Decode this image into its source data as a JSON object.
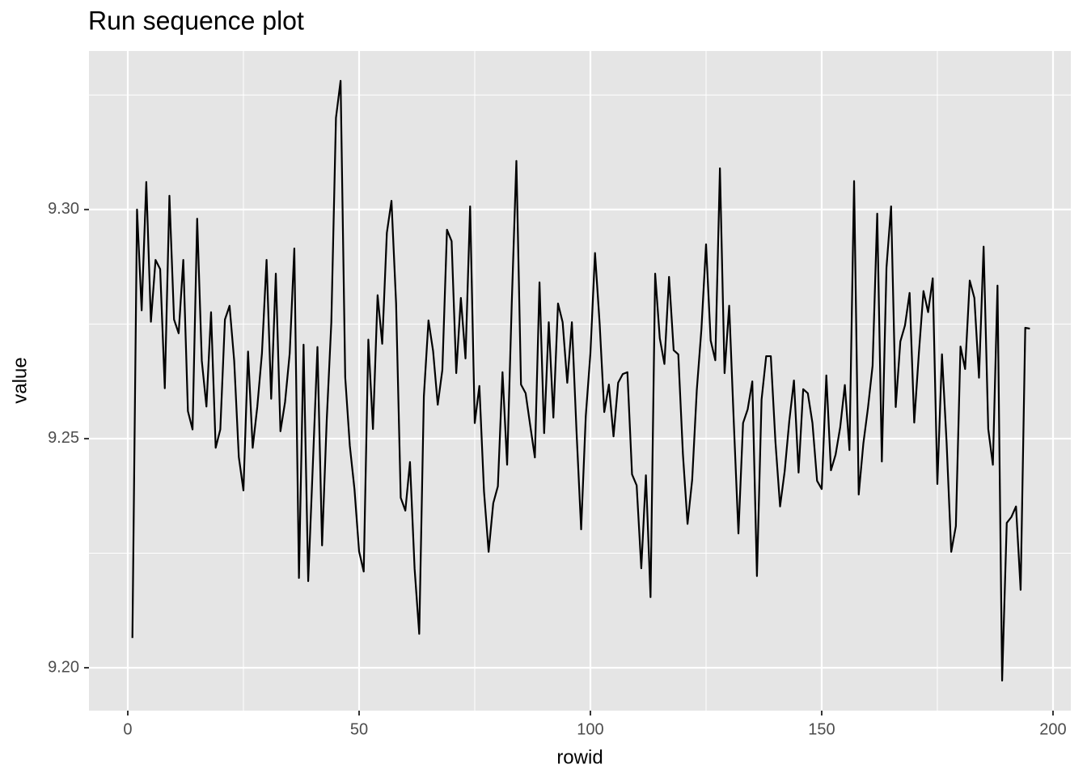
{
  "chart_data": {
    "type": "line",
    "title": "Run sequence plot",
    "x_label": "rowid",
    "y_label": "value",
    "x": [
      1,
      2,
      3,
      4,
      5,
      6,
      7,
      8,
      9,
      10,
      11,
      12,
      13,
      14,
      15,
      16,
      17,
      18,
      19,
      20,
      21,
      22,
      23,
      24,
      25,
      26,
      27,
      28,
      29,
      30,
      31,
      32,
      33,
      34,
      35,
      36,
      37,
      38,
      39,
      40,
      41,
      42,
      43,
      44,
      45,
      46,
      47,
      48,
      49,
      50,
      51,
      52,
      53,
      54,
      55,
      56,
      57,
      58,
      59,
      60,
      61,
      62,
      63,
      64,
      65,
      66,
      67,
      68,
      69,
      70,
      71,
      72,
      73,
      74,
      75,
      76,
      77,
      78,
      79,
      80,
      81,
      82,
      83,
      84,
      85,
      86,
      87,
      88,
      89,
      90,
      91,
      92,
      93,
      94,
      95,
      96,
      97,
      98,
      99,
      100,
      101,
      102,
      103,
      104,
      105,
      106,
      107,
      108,
      109,
      110,
      111,
      112,
      113,
      114,
      115,
      116,
      117,
      118,
      119,
      120,
      121,
      122,
      123,
      124,
      125,
      126,
      127,
      128,
      129,
      130,
      131,
      132,
      133,
      134,
      135,
      136,
      137,
      138,
      139,
      140,
      141,
      142,
      143,
      144,
      145,
      146,
      147,
      148,
      149,
      150,
      151,
      152,
      153,
      154,
      155,
      156,
      157,
      158,
      159,
      160,
      161,
      162,
      163,
      164,
      165,
      166,
      167,
      168,
      169,
      170,
      171,
      172,
      173,
      174,
      175,
      176,
      177,
      178,
      179,
      180,
      181,
      182,
      183,
      184,
      185,
      186,
      187,
      188,
      189,
      190,
      191,
      192,
      193,
      194,
      195
    ],
    "values": [
      9.2065,
      9.3,
      9.278,
      9.306,
      9.2755,
      9.289,
      9.287,
      9.261,
      9.303,
      9.276,
      9.273,
      9.289,
      9.256,
      9.252,
      9.298,
      9.267,
      9.257,
      9.2776,
      9.248,
      9.252,
      9.276,
      9.279,
      9.267,
      9.246,
      9.2387,
      9.269,
      9.248,
      9.257,
      9.2686,
      9.289,
      9.2587,
      9.286,
      9.2516,
      9.258,
      9.2686,
      9.2915,
      9.2196,
      9.2705,
      9.2189,
      9.2442,
      9.27,
      9.2267,
      9.2539,
      9.2754,
      9.32,
      9.3281,
      9.2634,
      9.2484,
      9.239,
      9.2254,
      9.221,
      9.2716,
      9.2521,
      9.2813,
      9.2707,
      9.2949,
      9.3019,
      9.2795,
      9.2371,
      9.2343,
      9.2449,
      9.2216,
      9.2074,
      9.2592,
      9.2758,
      9.2691,
      9.2574,
      9.265,
      9.2956,
      9.2931,
      9.2643,
      9.2807,
      9.2675,
      9.3007,
      9.2534,
      9.2615,
      9.2385,
      9.2253,
      9.2359,
      9.2396,
      9.2645,
      9.2443,
      9.2795,
      9.3106,
      9.2618,
      9.2599,
      9.2528,
      9.2459,
      9.2841,
      9.2512,
      9.2754,
      9.2546,
      9.2795,
      9.2754,
      9.2622,
      9.2754,
      9.2516,
      9.2302,
      9.2549,
      9.2686,
      9.2905,
      9.2751,
      9.2558,
      9.2618,
      9.2505,
      9.2622,
      9.2641,
      9.2645,
      9.2422,
      9.2398,
      9.2217,
      9.242,
      9.2154,
      9.286,
      9.2719,
      9.2663,
      9.2853,
      9.2693,
      9.2684,
      9.2466,
      9.2314,
      9.241,
      9.2606,
      9.2739,
      9.2924,
      9.2714,
      9.2671,
      9.309,
      9.2643,
      9.279,
      9.2535,
      9.2293,
      9.2534,
      9.2564,
      9.2625,
      9.22,
      9.2585,
      9.268,
      9.268,
      9.2493,
      9.2352,
      9.2429,
      9.2539,
      9.2627,
      9.2426,
      9.2608,
      9.2599,
      9.2534,
      9.2408,
      9.239,
      9.2638,
      9.2431,
      9.2465,
      9.2525,
      9.2617,
      9.2475,
      9.3062,
      9.2378,
      9.2489,
      9.2567,
      9.2659,
      9.2991,
      9.245,
      9.2873,
      9.3007,
      9.2569,
      9.2712,
      9.2747,
      9.2818,
      9.2535,
      9.2686,
      9.2822,
      9.2776,
      9.285,
      9.2401,
      9.2684,
      9.2491,
      9.2253,
      9.2309,
      9.2701,
      9.2652,
      9.2845,
      9.2807,
      9.2633,
      9.2919,
      9.2521,
      9.2443,
      9.2834,
      9.1972,
      9.2316,
      9.2329,
      9.2352,
      9.217,
      9.2742,
      9.274
    ],
    "color": "#000000",
    "xlim": [
      -8.39,
      203.85
    ],
    "ylim": [
      9.19064,
      9.3346
    ],
    "xticks": [
      0,
      50,
      100,
      150,
      200
    ],
    "yticks": [
      {
        "value": 9.2,
        "label": "9.20"
      },
      9.25,
      {
        "value": 9.3,
        "label": "9.30"
      }
    ],
    "minor_xticks": [
      25,
      75,
      125,
      175
    ],
    "minor_yticks": [
      9.225,
      9.275,
      9.325
    ],
    "grid": true
  }
}
